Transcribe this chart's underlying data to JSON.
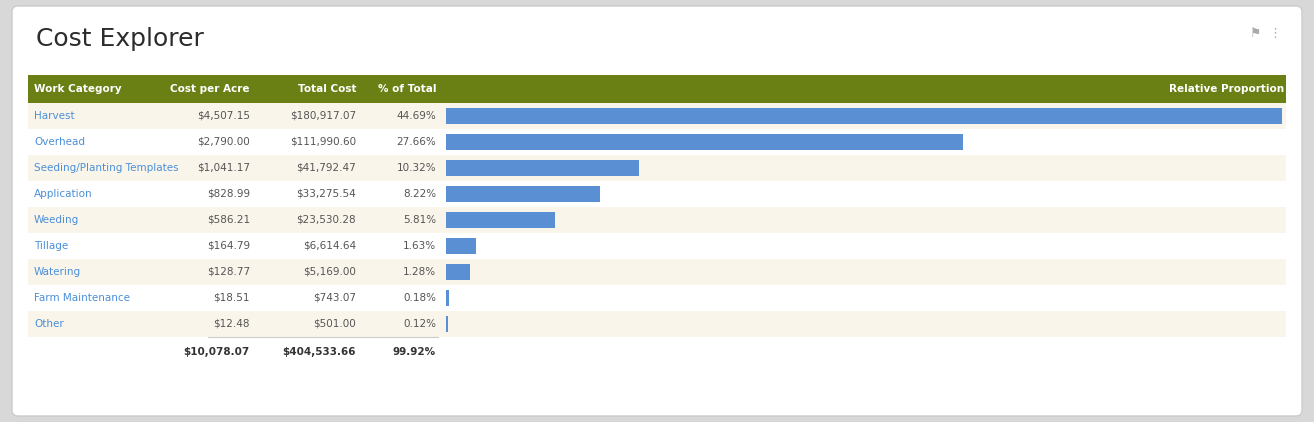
{
  "title": "Cost Explorer",
  "columns": [
    "Work Category",
    "Cost per Acre",
    "Total Cost",
    "% of Total",
    "Relative Proportion"
  ],
  "rows": [
    {
      "category": "Harvest",
      "cost_per_acre": "$4,507.15",
      "total_cost": "$180,917.07",
      "pct": "44.69%",
      "pct_val": 44.69
    },
    {
      "category": "Overhead",
      "cost_per_acre": "$2,790.00",
      "total_cost": "$111,990.60",
      "pct": "27.66%",
      "pct_val": 27.66
    },
    {
      "category": "Seeding/Planting Templates",
      "cost_per_acre": "$1,041.17",
      "total_cost": "$41,792.47",
      "pct": "10.32%",
      "pct_val": 10.32
    },
    {
      "category": "Application",
      "cost_per_acre": "$828.99",
      "total_cost": "$33,275.54",
      "pct": "8.22%",
      "pct_val": 8.22
    },
    {
      "category": "Weeding",
      "cost_per_acre": "$586.21",
      "total_cost": "$23,530.28",
      "pct": "5.81%",
      "pct_val": 5.81
    },
    {
      "category": "Tillage",
      "cost_per_acre": "$164.79",
      "total_cost": "$6,614.64",
      "pct": "1.63%",
      "pct_val": 1.63
    },
    {
      "category": "Watering",
      "cost_per_acre": "$128.77",
      "total_cost": "$5,169.00",
      "pct": "1.28%",
      "pct_val": 1.28
    },
    {
      "category": "Farm Maintenance",
      "cost_per_acre": "$18.51",
      "total_cost": "$743.07",
      "pct": "0.18%",
      "pct_val": 0.18
    },
    {
      "category": "Other",
      "cost_per_acre": "$12.48",
      "total_cost": "$501.00",
      "pct": "0.12%",
      "pct_val": 0.12
    }
  ],
  "footer": [
    "",
    "$10,078.07",
    "$404,533.66",
    "99.92%"
  ],
  "header_bg": "#6b8014",
  "header_fg": "#ffffff",
  "row_bg_odd": "#faf5eb",
  "row_bg_even": "#ffffff",
  "footer_bg": "#ffffff",
  "link_color": "#4a90d9",
  "bar_color": "#5b8fd4",
  "title_color": "#2c2c2c",
  "outer_bg": "#d8d8d8",
  "card_bg": "#ffffff",
  "fig_width": 13.14,
  "fig_height": 4.22,
  "title_fontsize": 18,
  "header_fontsize": 7.5,
  "cell_fontsize": 7.5,
  "max_pct": 44.69
}
